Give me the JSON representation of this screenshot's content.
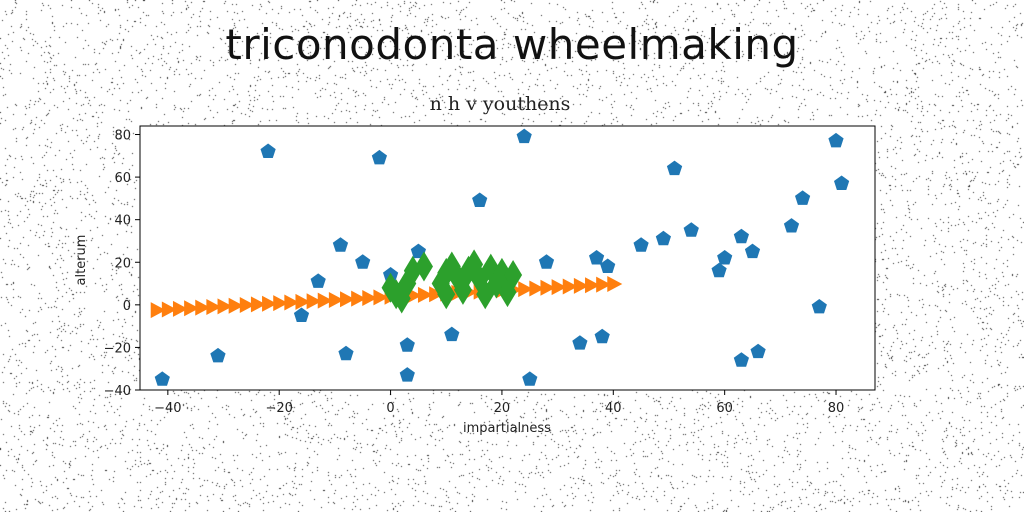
{
  "figure_title": "triconodonta wheelmaking",
  "chart_data": {
    "type": "scatter",
    "title": "n h v youthens",
    "xlabel": "impartialness",
    "ylabel": "alterum",
    "xlim": [
      -45,
      87
    ],
    "ylim": [
      -40,
      84
    ],
    "xticks": [
      -40,
      -20,
      0,
      20,
      40,
      60,
      80
    ],
    "yticks": [
      -40,
      -20,
      0,
      20,
      40,
      60,
      80
    ],
    "grid": false,
    "legend": "none",
    "series": [
      {
        "marker": "pentagon",
        "color": "#1f77b4",
        "points": [
          [
            -41,
            -35
          ],
          [
            -31,
            -24
          ],
          [
            -22,
            72
          ],
          [
            -16,
            -5
          ],
          [
            -13,
            11
          ],
          [
            -9,
            28
          ],
          [
            -8,
            -23
          ],
          [
            -5,
            20
          ],
          [
            -2,
            69
          ],
          [
            0,
            14
          ],
          [
            3,
            -19
          ],
          [
            3,
            -33
          ],
          [
            5,
            25
          ],
          [
            11,
            -14
          ],
          [
            16,
            49
          ],
          [
            24,
            79
          ],
          [
            25,
            -35
          ],
          [
            28,
            20
          ],
          [
            34,
            -18
          ],
          [
            37,
            22
          ],
          [
            38,
            -15
          ],
          [
            39,
            18
          ],
          [
            45,
            28
          ],
          [
            49,
            31
          ],
          [
            51,
            64
          ],
          [
            54,
            35
          ],
          [
            59,
            16
          ],
          [
            60,
            22
          ],
          [
            63,
            32
          ],
          [
            63,
            -26
          ],
          [
            65,
            25
          ],
          [
            66,
            -22
          ],
          [
            72,
            37
          ],
          [
            74,
            50
          ],
          [
            77,
            -1
          ],
          [
            80,
            77
          ],
          [
            81,
            57
          ]
        ]
      },
      {
        "marker": "triangle-right",
        "color": "#ff7f0e",
        "points": [
          [
            -42,
            -2.5
          ],
          [
            -40,
            -2.2
          ],
          [
            -38,
            -1.9
          ],
          [
            -36,
            -1.6
          ],
          [
            -34,
            -1.3
          ],
          [
            -32,
            -1.0
          ],
          [
            -30,
            -0.7
          ],
          [
            -28,
            -0.4
          ],
          [
            -26,
            -0.1
          ],
          [
            -24,
            0.2
          ],
          [
            -22,
            0.5
          ],
          [
            -20,
            0.8
          ],
          [
            -18,
            1.1
          ],
          [
            -16,
            1.4
          ],
          [
            -14,
            1.7
          ],
          [
            -12,
            2.0
          ],
          [
            -10,
            2.3
          ],
          [
            -8,
            2.6
          ],
          [
            -6,
            2.9
          ],
          [
            -4,
            3.2
          ],
          [
            -2,
            3.5
          ],
          [
            0,
            3.8
          ],
          [
            2,
            4.1
          ],
          [
            4,
            4.4
          ],
          [
            6,
            4.7
          ],
          [
            8,
            5.0
          ],
          [
            10,
            5.3
          ],
          [
            12,
            5.6
          ],
          [
            14,
            5.9
          ],
          [
            16,
            6.2
          ],
          [
            18,
            6.5
          ],
          [
            20,
            6.8
          ],
          [
            22,
            7.1
          ],
          [
            24,
            7.4
          ],
          [
            26,
            7.7
          ],
          [
            28,
            8.0
          ],
          [
            30,
            8.3
          ],
          [
            32,
            8.6
          ],
          [
            34,
            8.9
          ],
          [
            36,
            9.2
          ],
          [
            38,
            9.5
          ],
          [
            40,
            9.8
          ]
        ]
      },
      {
        "marker": "thin-diamond",
        "color": "#2ca02c",
        "points": [
          [
            0,
            8
          ],
          [
            1,
            5
          ],
          [
            2,
            3
          ],
          [
            3,
            10
          ],
          [
            4,
            16
          ],
          [
            6,
            18
          ],
          [
            9,
            10
          ],
          [
            10,
            15
          ],
          [
            10,
            5
          ],
          [
            11,
            18
          ],
          [
            12,
            13
          ],
          [
            13,
            7
          ],
          [
            14,
            16
          ],
          [
            15,
            19
          ],
          [
            16,
            12
          ],
          [
            17,
            5
          ],
          [
            18,
            17
          ],
          [
            19,
            10
          ],
          [
            20,
            15
          ],
          [
            21,
            6
          ],
          [
            22,
            14
          ]
        ]
      }
    ]
  }
}
